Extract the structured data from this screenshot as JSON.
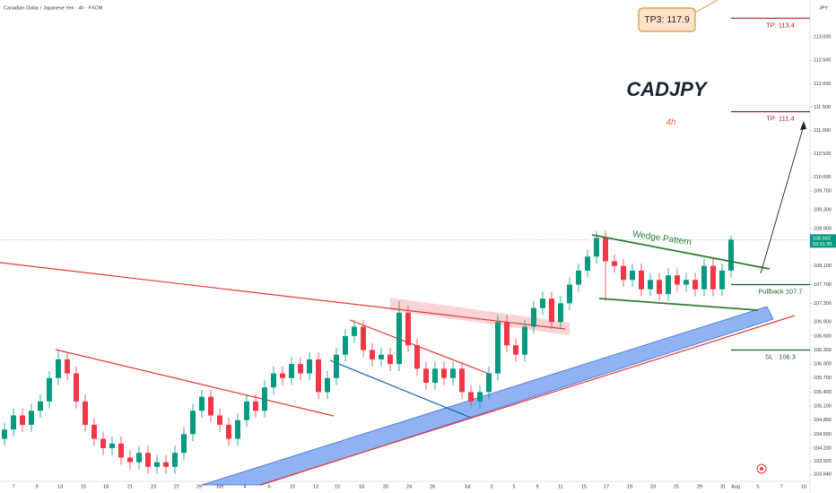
{
  "chart_data": {
    "type": "candlestick",
    "title": "Canadian Dollar / Japanese Yen · 4h · FXCM",
    "currency": "JPY",
    "symbol": "CADJPY",
    "timeframe": "4h",
    "pattern_label": "Wedge Pattern",
    "callout": "TP3: 117.9",
    "up_color": "#089981",
    "down_color": "#f23645",
    "ylim": [
      103.49,
      113.79
    ],
    "yticks": [
      {
        "value": 113.0,
        "label": "113.000"
      },
      {
        "value": 112.5,
        "label": "112.500"
      },
      {
        "value": 112.0,
        "label": "112.000"
      },
      {
        "value": 111.5,
        "label": "111.500"
      },
      {
        "value": 111.0,
        "label": "111.000"
      },
      {
        "value": 110.5,
        "label": "110.500"
      },
      {
        "value": 110.0,
        "label": "110.000"
      },
      {
        "value": 109.7,
        "label": "109.700"
      },
      {
        "value": 109.3,
        "label": "109.300"
      },
      {
        "value": 108.9,
        "label": "108.900"
      },
      {
        "value": 108.1,
        "label": "108.100"
      },
      {
        "value": 107.7,
        "label": "107.700"
      },
      {
        "value": 107.3,
        "label": "107.300"
      },
      {
        "value": 106.9,
        "label": "106.900"
      },
      {
        "value": 106.6,
        "label": "106.600"
      },
      {
        "value": 106.3,
        "label": "106.300"
      },
      {
        "value": 106.0,
        "label": "106.000"
      },
      {
        "value": 105.7,
        "label": "105.700"
      },
      {
        "value": 105.4,
        "label": "105.400"
      },
      {
        "value": 105.1,
        "label": "105.100"
      },
      {
        "value": 104.8,
        "label": "104.800"
      },
      {
        "value": 104.5,
        "label": "104.500"
      },
      {
        "value": 104.2,
        "label": "104.200"
      },
      {
        "value": 103.92,
        "label": "103.920"
      },
      {
        "value": 103.64,
        "label": "103.640"
      }
    ],
    "x_labels": [
      "7",
      "9",
      "13",
      "15",
      "18",
      "21",
      "23",
      "27",
      "29",
      "Jun",
      "4",
      "6",
      "10",
      "13",
      "15",
      "18",
      "20",
      "24",
      "26",
      "Jul",
      "3",
      "5",
      "9",
      "11",
      "15",
      "17",
      "19",
      "23",
      "25",
      "29",
      "31",
      "Aug",
      "5",
      "7",
      "10"
    ],
    "last_price": 108.662,
    "countdown": "03:31:35",
    "levels": [
      {
        "label": "TP: 113.4",
        "value": 113.4,
        "color": "#b22222"
      },
      {
        "label": "TP: 111.4",
        "value": 111.4,
        "color": "#b22222"
      },
      {
        "label": "Pullback 107.7",
        "value": 107.7,
        "color": "#1b5e20"
      },
      {
        "label": "SL : 106.3",
        "value": 106.3,
        "color": "#1b5e20"
      }
    ],
    "open": [
      104.4,
      104.6,
      104.9,
      104.7,
      105.0,
      105.2,
      105.7,
      106.1,
      105.8,
      105.2,
      104.7,
      104.4,
      104.2,
      104.3,
      104.0,
      103.9,
      104.1,
      103.8,
      103.9,
      103.8,
      104.1,
      104.5,
      105.0,
      105.3,
      104.9,
      104.7,
      104.4,
      104.8,
      105.2,
      105.0,
      105.5,
      105.8,
      105.7,
      106.0,
      105.8,
      106.1,
      105.4,
      105.7,
      106.2,
      106.6,
      106.8,
      106.3,
      106.1,
      106.2,
      106.0,
      107.1,
      106.4,
      105.9,
      105.6,
      105.9,
      105.7,
      105.9,
      105.4,
      105.2,
      105.4,
      105.8,
      106.9,
      106.4,
      106.2,
      106.8,
      107.2,
      107.4,
      106.9,
      107.3,
      107.7,
      108.0,
      108.3,
      108.7,
      108.2,
      108.1,
      107.8,
      108.0,
      107.6,
      107.8,
      107.5,
      107.9,
      107.7,
      107.8,
      107.6,
      108.1,
      107.6,
      108.0
    ],
    "high": [
      104.75,
      105.05,
      105.05,
      105.15,
      105.35,
      105.85,
      106.3,
      106.25,
      105.95,
      105.35,
      104.85,
      104.55,
      104.45,
      104.45,
      104.15,
      104.25,
      104.25,
      104.05,
      104.05,
      104.25,
      104.65,
      105.15,
      105.45,
      105.45,
      105.05,
      104.85,
      104.95,
      105.35,
      105.35,
      105.65,
      105.95,
      105.95,
      106.15,
      106.15,
      106.25,
      106.25,
      105.85,
      106.35,
      106.75,
      106.95,
      106.95,
      106.45,
      106.35,
      106.35,
      107.35,
      107.25,
      106.55,
      106.05,
      106.05,
      106.05,
      106.05,
      106.05,
      105.55,
      105.55,
      105.95,
      107.05,
      107.05,
      106.55,
      106.95,
      107.35,
      107.55,
      107.55,
      107.45,
      107.85,
      108.15,
      108.45,
      108.85,
      108.85,
      108.35,
      108.25,
      108.15,
      108.15,
      107.95,
      107.95,
      108.05,
      108.05,
      107.95,
      107.95,
      108.25,
      108.25,
      108.15,
      108.75
    ],
    "low": [
      104.25,
      104.45,
      104.55,
      104.55,
      104.85,
      105.05,
      105.55,
      105.65,
      105.05,
      104.55,
      104.25,
      104.05,
      104.05,
      103.85,
      103.75,
      103.75,
      103.65,
      103.65,
      103.65,
      103.65,
      103.95,
      104.35,
      104.85,
      104.75,
      104.55,
      104.25,
      104.25,
      104.65,
      104.85,
      104.85,
      105.35,
      105.55,
      105.55,
      105.65,
      105.65,
      105.25,
      105.25,
      105.55,
      106.05,
      106.45,
      106.15,
      105.95,
      105.95,
      105.85,
      105.85,
      106.25,
      105.75,
      105.45,
      105.45,
      105.55,
      105.55,
      105.25,
      105.05,
      105.05,
      105.25,
      105.65,
      106.25,
      106.05,
      106.05,
      106.65,
      107.05,
      106.75,
      106.75,
      107.15,
      107.55,
      107.85,
      108.15,
      107.35,
      107.95,
      107.65,
      107.65,
      107.45,
      107.45,
      107.35,
      107.35,
      107.55,
      107.55,
      107.45,
      107.45,
      107.45,
      107.45,
      107.85
    ],
    "close": [
      104.6,
      104.9,
      104.7,
      105.0,
      105.2,
      105.7,
      106.1,
      105.8,
      105.2,
      104.7,
      104.4,
      104.2,
      104.3,
      104.0,
      103.9,
      104.1,
      103.8,
      103.9,
      103.8,
      104.1,
      104.5,
      105.0,
      105.3,
      104.9,
      104.7,
      104.4,
      104.8,
      105.2,
      105.0,
      105.5,
      105.8,
      105.7,
      106.0,
      105.8,
      106.1,
      105.4,
      105.7,
      106.2,
      106.6,
      106.8,
      106.3,
      106.1,
      106.2,
      106.0,
      107.1,
      106.4,
      105.9,
      105.6,
      105.9,
      105.7,
      105.9,
      105.4,
      105.2,
      105.4,
      105.8,
      106.9,
      106.4,
      106.2,
      106.8,
      107.2,
      107.4,
      106.9,
      107.3,
      107.7,
      108.0,
      108.3,
      108.7,
      108.2,
      108.1,
      107.8,
      108.0,
      107.6,
      107.8,
      107.5,
      107.9,
      107.7,
      107.8,
      107.6,
      108.1,
      107.6,
      108.0,
      108.66
    ]
  }
}
